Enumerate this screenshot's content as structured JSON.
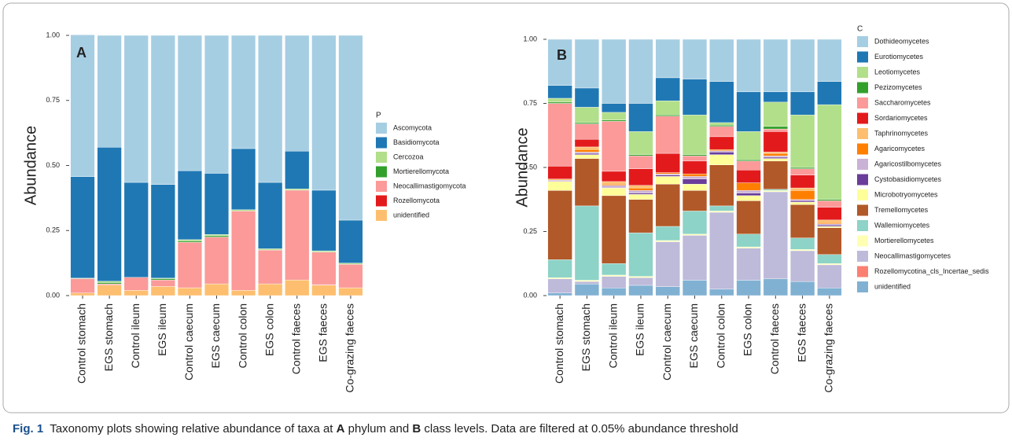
{
  "chart_data": [
    {
      "type": "bar",
      "stacked": true,
      "panel_label": "A",
      "ylabel": "Abundance",
      "legend_title": "P",
      "categories": [
        "Control stomach",
        "EGS stomach",
        "Control ileum",
        "EGS ileum",
        "Control caecum",
        "EGS caecum",
        "Control colon",
        "EGS colon",
        "Control faeces",
        "EGS faeces",
        "Co-grazing faeces"
      ],
      "ylim": [
        0,
        1
      ],
      "yticks": [
        {
          "value": 0,
          "label": "0.00"
        },
        {
          "value": 0.25,
          "label": "0.25"
        },
        {
          "value": 0.5,
          "label": "0.50"
        },
        {
          "value": 0.75,
          "label": "0.75"
        },
        {
          "value": 1,
          "label": "1.00"
        }
      ],
      "series": [
        {
          "name": "Ascomycota",
          "color": "#a6cee3",
          "values": [
            0.545,
            0.43,
            0.565,
            0.573,
            0.52,
            0.53,
            0.435,
            0.565,
            0.445,
            0.595,
            0.71
          ]
        },
        {
          "name": "Basidiomycota",
          "color": "#1f78b4",
          "values": [
            0.39,
            0.515,
            0.365,
            0.36,
            0.265,
            0.235,
            0.235,
            0.255,
            0.145,
            0.233,
            0.165
          ]
        },
        {
          "name": "Cercozoa",
          "color": "#b2df8a",
          "values": [
            0.002,
            0.005,
            0,
            0.002,
            0.005,
            0.005,
            0.005,
            0.005,
            0.005,
            0.005,
            0.005
          ]
        },
        {
          "name": "Mortierellomycota",
          "color": "#33a02c",
          "values": [
            0,
            0.005,
            0,
            0.005,
            0.005,
            0.005,
            0,
            0,
            0,
            0,
            0
          ]
        },
        {
          "name": "Neocallimastigomycota",
          "color": "#fb9a99",
          "values": [
            0.055,
            0.005,
            0.05,
            0.025,
            0.175,
            0.18,
            0.305,
            0.13,
            0.345,
            0.125,
            0.09
          ]
        },
        {
          "name": "Rozellomycota",
          "color": "#e31a1c",
          "values": [
            0,
            0,
            0,
            0,
            0,
            0,
            0,
            0,
            0,
            0.002,
            0
          ]
        },
        {
          "name": "unidentified",
          "color": "#fdbf6f",
          "values": [
            0.01,
            0.04,
            0.02,
            0.035,
            0.03,
            0.045,
            0.02,
            0.045,
            0.06,
            0.04,
            0.03
          ]
        }
      ]
    },
    {
      "type": "bar",
      "stacked": true,
      "panel_label": "B",
      "ylabel": "Abundance",
      "legend_title": "C",
      "categories": [
        "Control stomach",
        "EGS stomach",
        "Control ileum",
        "EGS ileum",
        "Control caecum",
        "EGS caecum",
        "Control colon",
        "EGS colon",
        "Control faeces",
        "EGS faeces",
        "Co-grazing faeces"
      ],
      "ylim": [
        0,
        1
      ],
      "yticks": [
        {
          "value": 0,
          "label": "0.00"
        },
        {
          "value": 0.25,
          "label": "0.25"
        },
        {
          "value": 0.5,
          "label": "0.50"
        },
        {
          "value": 0.75,
          "label": "0.75"
        },
        {
          "value": 1,
          "label": "1.00"
        }
      ],
      "series": [
        {
          "name": "Dothideomycetes",
          "color": "#a6cee3",
          "values": [
            0.18,
            0.19,
            0.25,
            0.25,
            0.15,
            0.155,
            0.165,
            0.205,
            0.205,
            0.205,
            0.165
          ]
        },
        {
          "name": "Eurotiomycetes",
          "color": "#1f78b4",
          "values": [
            0.05,
            0.075,
            0.035,
            0.11,
            0.09,
            0.14,
            0.16,
            0.155,
            0.04,
            0.09,
            0.09
          ]
        },
        {
          "name": "Leotiomycetes",
          "color": "#b2df8a",
          "values": [
            0.015,
            0.06,
            0.03,
            0.09,
            0.055,
            0.155,
            0.01,
            0.11,
            0.095,
            0.205,
            0.37
          ]
        },
        {
          "name": "Pezizomycetes",
          "color": "#33a02c",
          "values": [
            0.005,
            0.005,
            0.005,
            0.005,
            0.005,
            0.005,
            0.005,
            0.005,
            0.01,
            0.005,
            0.005
          ]
        },
        {
          "name": "Saccharomycetes",
          "color": "#fb9a99",
          "values": [
            0.245,
            0.06,
            0.195,
            0.05,
            0.145,
            0.02,
            0.04,
            0.035,
            0.01,
            0.025,
            0.025
          ]
        },
        {
          "name": "Sordariomycetes",
          "color": "#e31a1c",
          "values": [
            0.05,
            0.03,
            0.04,
            0.065,
            0.075,
            0.05,
            0.05,
            0.05,
            0.08,
            0.05,
            0.05
          ]
        },
        {
          "name": "Taphrinomycetes",
          "color": "#fdbf6f",
          "values": [
            0.005,
            0.01,
            0.01,
            0.01,
            0,
            0,
            0,
            0,
            0.005,
            0.01,
            0.01
          ]
        },
        {
          "name": "Agaricomycetes",
          "color": "#ff7f00",
          "values": [
            0,
            0.01,
            0.005,
            0.01,
            0.005,
            0.01,
            0.005,
            0.03,
            0.01,
            0.035,
            0.005
          ]
        },
        {
          "name": "Agaricostilbomycetes",
          "color": "#cab2d6",
          "values": [
            0.005,
            0.005,
            0.01,
            0.01,
            0.005,
            0.01,
            0.005,
            0.01,
            0.005,
            0.005,
            0.005
          ]
        },
        {
          "name": "Cystobasidiomycetes",
          "color": "#6a3d9a",
          "values": [
            0,
            0.005,
            0,
            0.005,
            0.005,
            0.02,
            0.01,
            0.01,
            0.005,
            0.005,
            0.005
          ]
        },
        {
          "name": "Microbotryomycetes",
          "color": "#ffff99",
          "values": [
            0.035,
            0.015,
            0.03,
            0.02,
            0.03,
            0.025,
            0.04,
            0.02,
            0.01,
            0.01,
            0.005
          ]
        },
        {
          "name": "Tremellomycetes",
          "color": "#b15928",
          "values": [
            0.27,
            0.185,
            0.265,
            0.13,
            0.165,
            0.08,
            0.16,
            0.13,
            0.11,
            0.13,
            0.105
          ]
        },
        {
          "name": "Wallemiomycetes",
          "color": "#8dd3c7",
          "values": [
            0.07,
            0.29,
            0.045,
            0.17,
            0.055,
            0.09,
            0.02,
            0.05,
            0.005,
            0.045,
            0.035
          ]
        },
        {
          "name": "Mortierellomycetes",
          "color": "#ffffb3",
          "values": [
            0.005,
            0.005,
            0.005,
            0.005,
            0.005,
            0.005,
            0.005,
            0.005,
            0.005,
            0.005,
            0.005
          ]
        },
        {
          "name": "Neocallimastigomycetes",
          "color": "#bebada",
          "values": [
            0.055,
            0.01,
            0.045,
            0.03,
            0.175,
            0.175,
            0.3,
            0.125,
            0.34,
            0.12,
            0.09
          ]
        },
        {
          "name": "Rozellomycotina_cls_Incertae_sedis",
          "color": "#fb8072",
          "values": [
            0,
            0,
            0,
            0,
            0,
            0,
            0,
            0,
            0,
            0,
            0
          ]
        },
        {
          "name": "unidentified",
          "color": "#80b1d3",
          "values": [
            0.01,
            0.045,
            0.03,
            0.04,
            0.035,
            0.06,
            0.025,
            0.06,
            0.065,
            0.055,
            0.03
          ]
        }
      ]
    }
  ],
  "caption": {
    "label": "Fig. 1",
    "parts": [
      "Taxonomy plots showing relative abundance of taxa at ",
      "A",
      " phylum and ",
      "B",
      " class levels. Data are filtered at 0.05% abundance threshold"
    ]
  }
}
